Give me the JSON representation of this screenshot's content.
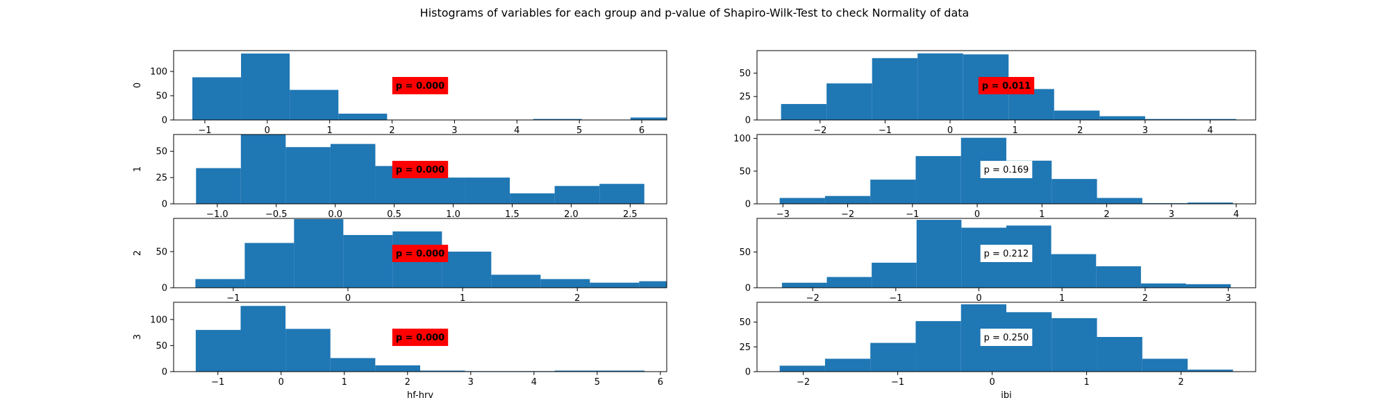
{
  "title": "Histograms of variables for each group and p-value of Shapiro-Wilk-Test to check Normality of data",
  "chart_data": [
    {
      "type": "bar",
      "variable": "hf-hrv",
      "group": "0",
      "ylabel": "0",
      "xlabel": "",
      "bin_edges": [
        -1.2,
        -0.42,
        0.36,
        1.14,
        1.92,
        2.7,
        3.48,
        4.26,
        5.04,
        5.82,
        6.6
      ],
      "counts": [
        88,
        137,
        62,
        13,
        0,
        0,
        0,
        2,
        0,
        5
      ],
      "xlim": [
        -1.5,
        6.4
      ],
      "ylim": [
        0,
        143
      ],
      "xticks": [
        -1,
        0,
        1,
        2,
        3,
        4,
        5,
        6
      ],
      "yticks": [
        0,
        50,
        100
      ],
      "annotation": "p = 0.000",
      "annotation_bg": "#ff0000",
      "annotation_bold": true
    },
    {
      "type": "bar",
      "variable": "ibi",
      "group": "0",
      "ylabel": "",
      "xlabel": "",
      "bin_edges": [
        -2.6,
        -1.9,
        -1.2,
        -0.5,
        0.2,
        0.9,
        1.6,
        2.3,
        3.0,
        3.7,
        4.4
      ],
      "counts": [
        17,
        39,
        66,
        71,
        70,
        33,
        10,
        4,
        1,
        1
      ],
      "xlim": [
        -2.97,
        4.7
      ],
      "ylim": [
        0,
        74
      ],
      "xticks": [
        -2,
        -1,
        0,
        1,
        2,
        3,
        4
      ],
      "yticks": [
        0,
        25,
        50,
        75
      ],
      "annotation": "p = 0.011",
      "annotation_bg": "#ff0000",
      "annotation_bold": true
    },
    {
      "type": "bar",
      "variable": "hf-hrv",
      "group": "1",
      "ylabel": "1",
      "xlabel": "",
      "bin_edges": [
        -1.18,
        -0.8,
        -0.42,
        -0.04,
        0.34,
        0.72,
        1.1,
        1.48,
        1.86,
        2.24,
        2.62
      ],
      "counts": [
        34,
        66,
        54,
        57,
        36,
        25,
        25,
        10,
        17,
        19
      ],
      "xlim": [
        -1.37,
        2.81
      ],
      "ylim": [
        0,
        66
      ],
      "xticks": [
        -1.0,
        -0.5,
        0.0,
        0.5,
        1.0,
        1.5,
        2.0,
        2.5
      ],
      "xtick_labels": [
        "−1.0",
        "−0.5",
        "0.0",
        "0.5",
        "1.0",
        "1.5",
        "2.0",
        "2.5"
      ],
      "yticks": [
        0,
        25,
        50
      ],
      "annotation": "p = 0.000",
      "annotation_bg": "#ff0000",
      "annotation_bold": true
    },
    {
      "type": "bar",
      "variable": "ibi",
      "group": "1",
      "ylabel": "",
      "xlabel": "",
      "bin_edges": [
        -3.05,
        -2.35,
        -1.65,
        -0.95,
        -0.25,
        0.45,
        1.15,
        1.85,
        2.55,
        3.25,
        3.95
      ],
      "counts": [
        9,
        12,
        37,
        73,
        101,
        66,
        38,
        9,
        1,
        2
      ],
      "xlim": [
        -3.4,
        4.3
      ],
      "ylim": [
        0,
        106
      ],
      "xticks": [
        -3,
        -2,
        -1,
        0,
        1,
        2,
        3,
        4
      ],
      "yticks": [
        0,
        50,
        100
      ],
      "annotation": "p = 0.169",
      "annotation_bg": "#ffffff",
      "annotation_bold": false
    },
    {
      "type": "bar",
      "variable": "hf-hrv",
      "group": "2",
      "ylabel": "2",
      "xlabel": "",
      "bin_edges": [
        -1.33,
        -0.9,
        -0.47,
        -0.04,
        0.39,
        0.82,
        1.25,
        1.68,
        2.11,
        2.54,
        2.97
      ],
      "counts": [
        12,
        62,
        95,
        73,
        78,
        50,
        18,
        12,
        7,
        9
      ],
      "xlim": [
        -1.52,
        2.78
      ],
      "ylim": [
        0,
        96
      ],
      "xticks": [
        -1,
        0,
        1,
        2
      ],
      "yticks": [
        0,
        50
      ],
      "annotation": "p = 0.000",
      "annotation_bg": "#ff0000",
      "annotation_bold": true
    },
    {
      "type": "bar",
      "variable": "ibi",
      "group": "2",
      "ylabel": "",
      "xlabel": "",
      "bin_edges": [
        -2.37,
        -1.83,
        -1.29,
        -0.75,
        -0.21,
        0.33,
        0.87,
        1.41,
        1.95,
        2.49,
        3.03
      ],
      "counts": [
        7,
        15,
        35,
        95,
        84,
        87,
        47,
        30,
        6,
        5
      ],
      "xlim": [
        -2.67,
        3.33
      ],
      "ylim": [
        0,
        97
      ],
      "xticks": [
        -2,
        -1,
        0,
        1,
        2,
        3
      ],
      "yticks": [
        0,
        50
      ],
      "annotation": "p = 0.212",
      "annotation_bg": "#ffffff",
      "annotation_bold": false
    },
    {
      "type": "bar",
      "variable": "hf-hrv",
      "group": "3",
      "ylabel": "3",
      "xlabel": "hf-hrv",
      "bin_edges": [
        -1.35,
        -0.64,
        0.07,
        0.78,
        1.49,
        2.2,
        2.91,
        3.62,
        4.33,
        5.04,
        5.75
      ],
      "counts": [
        80,
        126,
        82,
        26,
        12,
        2,
        1,
        1,
        2,
        2
      ],
      "xlim": [
        -1.7,
        6.1
      ],
      "ylim": [
        0,
        133
      ],
      "xticks": [
        -1,
        0,
        1,
        2,
        3,
        4,
        5,
        6
      ],
      "yticks": [
        0,
        50,
        100
      ],
      "annotation": "p = 0.000",
      "annotation_bg": "#ff0000",
      "annotation_bold": true
    },
    {
      "type": "bar",
      "variable": "ibi",
      "group": "3",
      "ylabel": "",
      "xlabel": "ibi",
      "bin_edges": [
        -2.25,
        -1.77,
        -1.29,
        -0.81,
        -0.33,
        0.15,
        0.63,
        1.11,
        1.59,
        2.07,
        2.55
      ],
      "counts": [
        6,
        13,
        29,
        51,
        68,
        60,
        54,
        35,
        13,
        2
      ],
      "xlim": [
        -2.49,
        2.79
      ],
      "ylim": [
        0,
        70
      ],
      "xticks": [
        -2,
        -1,
        0,
        1,
        2
      ],
      "yticks": [
        0,
        25,
        50
      ],
      "annotation": "p = 0.250",
      "annotation_bg": "#ffffff",
      "annotation_bold": false
    }
  ],
  "colors": {
    "bar": "#1f77b4",
    "axis": "#000000",
    "text": "#000000"
  }
}
